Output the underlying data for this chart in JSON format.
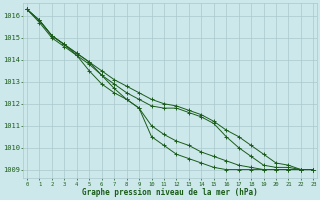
{
  "title": "Graphe pression niveau de la mer (hPa)",
  "background_color": "#cde8ea",
  "grid_color": "#aac8cc",
  "line_color": "#1a5c1a",
  "x_ticks": [
    0,
    1,
    2,
    3,
    4,
    5,
    6,
    7,
    8,
    9,
    10,
    11,
    12,
    13,
    14,
    15,
    16,
    17,
    18,
    19,
    20,
    21,
    22,
    23
  ],
  "y_ticks": [
    1009,
    1010,
    1011,
    1012,
    1013,
    1014,
    1015,
    1016
  ],
  "ylim": [
    1008.6,
    1016.6
  ],
  "xlim": [
    -0.3,
    23.3
  ],
  "series": [
    [
      1016.3,
      1015.8,
      1015.1,
      1014.7,
      1014.2,
      1013.8,
      1013.3,
      1012.9,
      1012.5,
      1012.2,
      1011.9,
      1011.8,
      1011.8,
      1011.6,
      1011.4,
      1011.1,
      1010.5,
      1010.0,
      1009.6,
      1009.2,
      1009.1,
      1009.1,
      1009.0,
      1009.0
    ],
    [
      1016.3,
      1015.8,
      1015.1,
      1014.7,
      1014.3,
      1013.9,
      1013.5,
      1013.1,
      1012.8,
      1012.5,
      1012.2,
      1012.0,
      1011.9,
      1011.7,
      1011.5,
      1011.2,
      1010.8,
      1010.5,
      1010.1,
      1009.7,
      1009.3,
      1009.2,
      1009.0,
      1009.0
    ],
    [
      1016.3,
      1015.7,
      1015.0,
      1014.6,
      1014.2,
      1013.5,
      1012.9,
      1012.5,
      1012.2,
      1011.8,
      1011.0,
      1010.6,
      1010.3,
      1010.1,
      1009.8,
      1009.6,
      1009.4,
      1009.2,
      1009.1,
      1009.0,
      1009.0,
      1009.0,
      1009.0,
      1009.0
    ],
    [
      1016.3,
      1015.8,
      1015.1,
      1014.7,
      1014.3,
      1013.9,
      1013.3,
      1012.7,
      1012.2,
      1011.8,
      1010.5,
      1010.1,
      1009.7,
      1009.5,
      1009.3,
      1009.1,
      1009.0,
      1009.0,
      1009.0,
      1009.0,
      1009.0,
      1009.0,
      1009.0,
      1009.0
    ]
  ]
}
